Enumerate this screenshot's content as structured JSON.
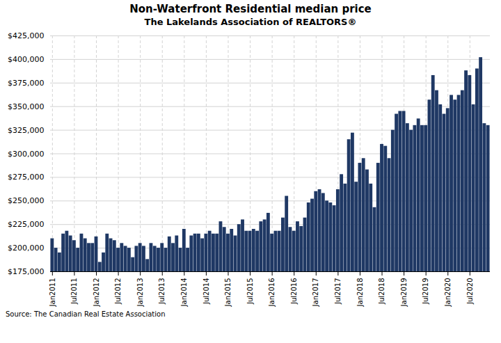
{
  "chart_data": {
    "type": "bar",
    "title": "Non-Waterfront Residential median price",
    "subtitle": "The Lakelands Association of REALTORS®",
    "annotation": "Source: The Canadian Real Estate Association",
    "color": "#1F3864",
    "ylim": [
      175000,
      425000
    ],
    "yticks": [
      {
        "value": 175000,
        "label": "$175,000"
      },
      {
        "value": 200000,
        "label": "$200,000"
      },
      {
        "value": 225000,
        "label": "$225,000"
      },
      {
        "value": 250000,
        "label": "$250,000"
      },
      {
        "value": 275000,
        "label": "$275,000"
      },
      {
        "value": 300000,
        "label": "$300,000"
      },
      {
        "value": 325000,
        "label": "$325,000"
      },
      {
        "value": 350000,
        "label": "$350,000"
      },
      {
        "value": 375000,
        "label": "$375,000"
      },
      {
        "value": 400000,
        "label": "$400,000"
      },
      {
        "value": 425000,
        "label": "$425,000"
      }
    ],
    "grid": true,
    "categories": [
      "Jan2011",
      null,
      null,
      null,
      null,
      null,
      "Jul2011",
      null,
      null,
      null,
      null,
      null,
      "Jan2012",
      null,
      null,
      null,
      null,
      null,
      "Jul2012",
      null,
      null,
      null,
      null,
      null,
      "Jan2013",
      null,
      null,
      null,
      null,
      null,
      "Jul2013",
      null,
      null,
      null,
      null,
      null,
      "Jan2014",
      null,
      null,
      null,
      null,
      null,
      "Jul2014",
      null,
      null,
      null,
      null,
      null,
      "Jan2015",
      null,
      null,
      null,
      null,
      null,
      "Jul2015",
      null,
      null,
      null,
      null,
      null,
      "Jan2016",
      null,
      null,
      null,
      null,
      null,
      "Jul2016",
      null,
      null,
      null,
      null,
      null,
      "Jan2017",
      null,
      null,
      null,
      null,
      null,
      "Jul2017",
      null,
      null,
      null,
      null,
      null,
      "Jan2018",
      null,
      null,
      null,
      null,
      null,
      "Jul2018",
      null,
      null,
      null,
      null,
      null,
      "Jan2019",
      null,
      null,
      null,
      null,
      null,
      "Jul2019",
      null,
      null,
      null,
      null,
      null,
      "Jan2020",
      null,
      null,
      null,
      null,
      null,
      "Jul2020",
      null,
      null,
      null,
      null,
      null
    ],
    "values": [
      210000,
      200000,
      195000,
      215000,
      218000,
      213000,
      208000,
      200000,
      215000,
      210000,
      205000,
      205000,
      212000,
      185000,
      195000,
      215000,
      210000,
      208000,
      200000,
      205000,
      202000,
      200000,
      190000,
      202000,
      205000,
      202000,
      188000,
      205000,
      202000,
      200000,
      205000,
      200000,
      212000,
      205000,
      213000,
      200000,
      220000,
      200000,
      213000,
      215000,
      215000,
      210000,
      215000,
      218000,
      215000,
      215000,
      228000,
      222000,
      215000,
      220000,
      213000,
      225000,
      230000,
      218000,
      218000,
      220000,
      218000,
      228000,
      230000,
      237000,
      215000,
      218000,
      218000,
      232000,
      255000,
      222000,
      218000,
      228000,
      223000,
      232000,
      248000,
      252000,
      260000,
      262000,
      258000,
      250000,
      248000,
      245000,
      262000,
      278000,
      268000,
      315000,
      322000,
      270000,
      290000,
      295000,
      283000,
      268000,
      243000,
      290000,
      310000,
      308000,
      295000,
      325000,
      342000,
      345000,
      345000,
      332000,
      325000,
      330000,
      337000,
      330000,
      330000,
      357000,
      383000,
      367000,
      352000,
      342000,
      348000,
      362000,
      357000,
      362000,
      367000,
      388000,
      383000,
      352000,
      390000,
      402000,
      332000,
      330000
    ]
  }
}
